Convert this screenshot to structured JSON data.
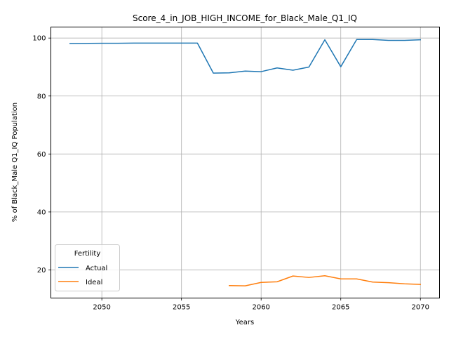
{
  "chart_data": {
    "type": "line",
    "title": "Score_4_in_JOB_HIGH_INCOME_for_Black_Male_Q1_IQ",
    "xlabel": "Years",
    "ylabel": "% of Black_Male Q1_IQ Population",
    "xlim": [
      2046.8,
      2071.2
    ],
    "ylim": [
      10.3,
      103.8
    ],
    "xticks": [
      2050,
      2055,
      2060,
      2065,
      2070
    ],
    "yticks": [
      20,
      40,
      60,
      80,
      100
    ],
    "grid": true,
    "legend": {
      "title": "Fertility",
      "placement": "lower-left"
    },
    "series": [
      {
        "name": "Actual",
        "color": "#1f77b4",
        "x": [
          2048,
          2049,
          2050,
          2051,
          2052,
          2053,
          2054,
          2055,
          2056,
          2057,
          2058,
          2059,
          2060,
          2061,
          2062,
          2063,
          2064,
          2065,
          2066,
          2067,
          2068,
          2069,
          2070
        ],
        "y": [
          98.1,
          98.15,
          98.2,
          98.2,
          98.25,
          98.25,
          98.25,
          98.25,
          98.25,
          87.9,
          88.0,
          88.6,
          88.4,
          89.7,
          88.9,
          90.0,
          99.4,
          90.1,
          99.5,
          99.5,
          99.2,
          99.2,
          99.4
        ]
      },
      {
        "name": "Ideal",
        "color": "#ff7f0e",
        "x": [
          2058,
          2059,
          2060,
          2061,
          2062,
          2063,
          2064,
          2065,
          2066,
          2067,
          2068,
          2069,
          2070
        ],
        "y": [
          14.6,
          14.5,
          15.7,
          15.9,
          17.9,
          17.4,
          18.0,
          16.9,
          16.9,
          15.8,
          15.6,
          15.2,
          15.0
        ]
      }
    ]
  }
}
